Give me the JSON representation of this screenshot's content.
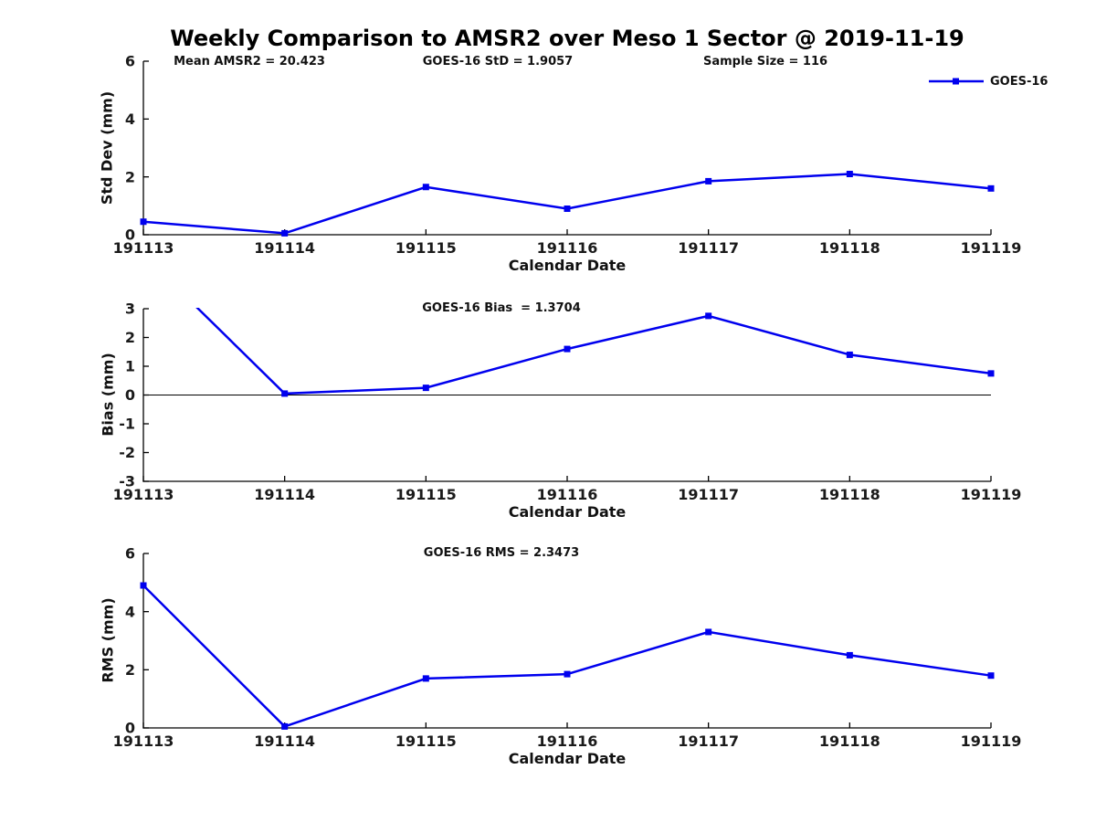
{
  "title": "Weekly Comparison to AMSR2 over Meso 1 Sector @ 2019-11-19",
  "header_stats": {
    "mean_amsr2": "Mean AMSR2 = 20.423",
    "goes16_std": "GOES-16 StD = 1.9057",
    "sample_size": "Sample Size = 116"
  },
  "legend": {
    "label": "GOES-16",
    "color": "#0000ee",
    "position": "top-right"
  },
  "colors": {
    "line": "#0000ee",
    "axis": "#000000",
    "text": "#1a1a1a",
    "background": "#ffffff"
  },
  "chart_data": [
    {
      "type": "line",
      "categories": [
        "191113",
        "191114",
        "191115",
        "191116",
        "191117",
        "191118",
        "191119"
      ],
      "series": [
        {
          "name": "GOES-16",
          "values": [
            0.45,
            0.05,
            1.65,
            0.9,
            1.85,
            2.1,
            1.6
          ]
        }
      ],
      "xlabel": "Calendar Date",
      "ylabel": "Std Dev (mm)",
      "ylim": [
        0,
        6
      ],
      "yticks": [
        0,
        2,
        4,
        6
      ],
      "zero_line": false,
      "grid": false,
      "color": "#0000ee",
      "marker": "square",
      "annotation": ""
    },
    {
      "type": "line",
      "categories": [
        "191113",
        "191114",
        "191115",
        "191116",
        "191117",
        "191118",
        "191119"
      ],
      "series": [
        {
          "name": "GOES-16",
          "values": [
            4.87,
            0.05,
            0.25,
            1.6,
            2.75,
            1.4,
            0.75
          ]
        }
      ],
      "xlabel": "Calendar Date",
      "ylabel": "Bias (mm)",
      "ylim": [
        -3,
        3
      ],
      "yticks": [
        3,
        2,
        1,
        0,
        -1,
        -2,
        -3
      ],
      "zero_line": true,
      "grid": false,
      "color": "#0000ee",
      "marker": "square",
      "annotation": "GOES-16 Bias  = 1.3704",
      "note": "first point (191113 = 4.87) exceeds ylim and is clipped at top"
    },
    {
      "type": "line",
      "categories": [
        "191113",
        "191114",
        "191115",
        "191116",
        "191117",
        "191118",
        "191119"
      ],
      "series": [
        {
          "name": "GOES-16",
          "values": [
            4.9,
            0.05,
            1.7,
            1.85,
            3.3,
            2.5,
            1.8
          ]
        }
      ],
      "xlabel": "Calendar Date",
      "ylabel": "RMS (mm)",
      "ylim": [
        0,
        6
      ],
      "yticks": [
        0,
        2,
        4,
        6
      ],
      "zero_line": false,
      "grid": false,
      "color": "#0000ee",
      "marker": "square",
      "annotation": "GOES-16 RMS = 2.3473"
    }
  ]
}
